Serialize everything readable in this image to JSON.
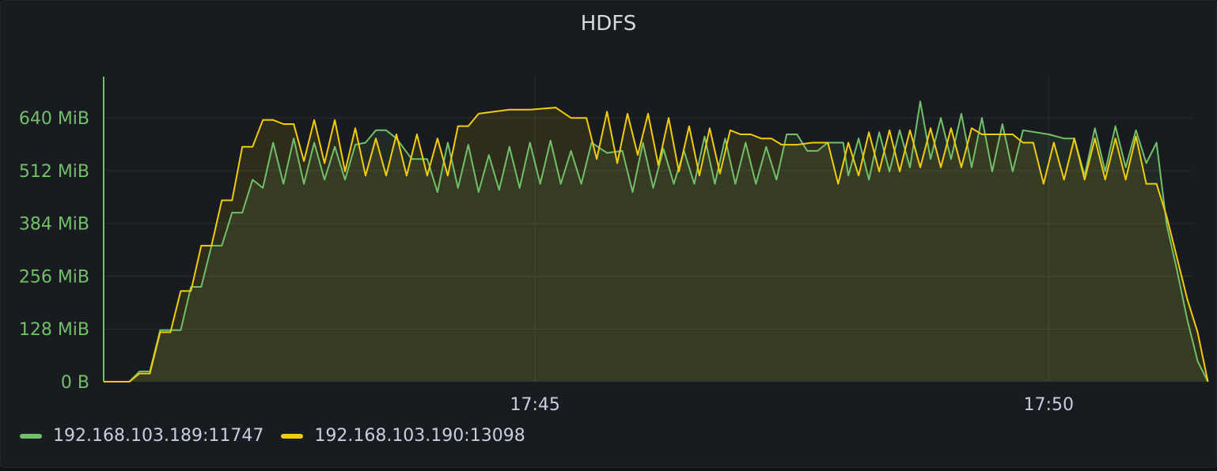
{
  "panel": {
    "title": "HDFS"
  },
  "colors": {
    "series_green": "#73bf69",
    "series_yellow": "#f2cc0c",
    "ytick": "#73bf69",
    "xtick": "#c7d0d9",
    "grid": "#2a2d33"
  },
  "chart_data": {
    "type": "line",
    "title": "HDFS",
    "xlabel": "",
    "ylabel": "",
    "x_ticks": [
      "17:45",
      "17:50"
    ],
    "y_ticks": [
      "0 B",
      "128 MiB",
      "256 MiB",
      "384 MiB",
      "512 MiB",
      "640 MiB"
    ],
    "ylim": [
      0,
      740
    ],
    "y_unit": "MiB",
    "x_domain_minutes": [
      -4.2,
      6.4
    ],
    "grid": true,
    "legend_position": "bottom-left",
    "series": [
      {
        "name": "192.168.103.189:11747",
        "color": "#73bf69",
        "points": [
          [
            -4.2,
            0
          ],
          [
            -3.95,
            0
          ],
          [
            -3.85,
            25
          ],
          [
            -3.75,
            25
          ],
          [
            -3.65,
            125
          ],
          [
            -3.45,
            125
          ],
          [
            -3.35,
            230
          ],
          [
            -3.25,
            230
          ],
          [
            -3.15,
            330
          ],
          [
            -3.05,
            330
          ],
          [
            -2.95,
            410
          ],
          [
            -2.85,
            410
          ],
          [
            -2.75,
            490
          ],
          [
            -2.65,
            470
          ],
          [
            -2.55,
            580
          ],
          [
            -2.45,
            480
          ],
          [
            -2.35,
            590
          ],
          [
            -2.25,
            480
          ],
          [
            -2.15,
            580
          ],
          [
            -2.05,
            490
          ],
          [
            -1.95,
            570
          ],
          [
            -1.85,
            490
          ],
          [
            -1.75,
            575
          ],
          [
            -1.65,
            580
          ],
          [
            -1.55,
            610
          ],
          [
            -1.45,
            610
          ],
          [
            -1.35,
            590
          ],
          [
            -1.2,
            540
          ],
          [
            -1.05,
            540
          ],
          [
            -0.95,
            460
          ],
          [
            -0.85,
            580
          ],
          [
            -0.75,
            470
          ],
          [
            -0.65,
            575
          ],
          [
            -0.55,
            460
          ],
          [
            -0.45,
            550
          ],
          [
            -0.35,
            465
          ],
          [
            -0.25,
            570
          ],
          [
            -0.15,
            470
          ],
          [
            -0.05,
            580
          ],
          [
            0.05,
            480
          ],
          [
            0.15,
            585
          ],
          [
            0.25,
            480
          ],
          [
            0.35,
            560
          ],
          [
            0.45,
            480
          ],
          [
            0.55,
            580
          ],
          [
            0.7,
            555
          ],
          [
            0.85,
            560
          ],
          [
            0.95,
            460
          ],
          [
            1.05,
            580
          ],
          [
            1.15,
            470
          ],
          [
            1.25,
            565
          ],
          [
            1.35,
            480
          ],
          [
            1.45,
            560
          ],
          [
            1.55,
            480
          ],
          [
            1.65,
            595
          ],
          [
            1.75,
            480
          ],
          [
            1.85,
            590
          ],
          [
            1.95,
            480
          ],
          [
            2.05,
            580
          ],
          [
            2.15,
            480
          ],
          [
            2.25,
            570
          ],
          [
            2.35,
            490
          ],
          [
            2.45,
            600
          ],
          [
            2.55,
            600
          ],
          [
            2.65,
            560
          ],
          [
            2.75,
            560
          ],
          [
            2.85,
            580
          ],
          [
            3.0,
            580
          ],
          [
            3.05,
            500
          ],
          [
            3.15,
            590
          ],
          [
            3.25,
            490
          ],
          [
            3.35,
            605
          ],
          [
            3.45,
            510
          ],
          [
            3.55,
            610
          ],
          [
            3.65,
            520
          ],
          [
            3.75,
            680
          ],
          [
            3.85,
            540
          ],
          [
            3.95,
            640
          ],
          [
            4.05,
            540
          ],
          [
            4.15,
            650
          ],
          [
            4.25,
            520
          ],
          [
            4.35,
            640
          ],
          [
            4.45,
            510
          ],
          [
            4.55,
            625
          ],
          [
            4.65,
            510
          ],
          [
            4.75,
            610
          ],
          [
            5.0,
            600
          ],
          [
            5.15,
            590
          ],
          [
            5.25,
            590
          ],
          [
            5.35,
            500
          ],
          [
            5.45,
            615
          ],
          [
            5.55,
            510
          ],
          [
            5.65,
            620
          ],
          [
            5.75,
            520
          ],
          [
            5.85,
            610
          ],
          [
            5.95,
            530
          ],
          [
            6.05,
            580
          ],
          [
            6.15,
            380
          ],
          [
            6.25,
            270
          ],
          [
            6.35,
            150
          ],
          [
            6.45,
            50
          ],
          [
            6.55,
            0
          ]
        ]
      },
      {
        "name": "192.168.103.190:13098",
        "color": "#f2cc0c",
        "points": [
          [
            -4.2,
            0
          ],
          [
            -3.95,
            0
          ],
          [
            -3.85,
            20
          ],
          [
            -3.75,
            20
          ],
          [
            -3.65,
            120
          ],
          [
            -3.55,
            120
          ],
          [
            -3.45,
            220
          ],
          [
            -3.35,
            220
          ],
          [
            -3.25,
            330
          ],
          [
            -3.15,
            330
          ],
          [
            -3.05,
            440
          ],
          [
            -2.95,
            440
          ],
          [
            -2.85,
            570
          ],
          [
            -2.75,
            570
          ],
          [
            -2.65,
            635
          ],
          [
            -2.55,
            635
          ],
          [
            -2.45,
            625
          ],
          [
            -2.35,
            625
          ],
          [
            -2.25,
            535
          ],
          [
            -2.15,
            635
          ],
          [
            -2.05,
            530
          ],
          [
            -1.95,
            635
          ],
          [
            -1.85,
            510
          ],
          [
            -1.75,
            615
          ],
          [
            -1.65,
            500
          ],
          [
            -1.55,
            590
          ],
          [
            -1.45,
            500
          ],
          [
            -1.35,
            600
          ],
          [
            -1.25,
            500
          ],
          [
            -1.15,
            600
          ],
          [
            -1.05,
            500
          ],
          [
            -0.95,
            590
          ],
          [
            -0.85,
            500
          ],
          [
            -0.75,
            620
          ],
          [
            -0.65,
            620
          ],
          [
            -0.55,
            650
          ],
          [
            -0.4,
            655
          ],
          [
            -0.25,
            660
          ],
          [
            -0.05,
            660
          ],
          [
            0.2,
            665
          ],
          [
            0.35,
            640
          ],
          [
            0.5,
            640
          ],
          [
            0.6,
            540
          ],
          [
            0.7,
            655
          ],
          [
            0.8,
            530
          ],
          [
            0.9,
            650
          ],
          [
            1.0,
            550
          ],
          [
            1.1,
            650
          ],
          [
            1.2,
            525
          ],
          [
            1.3,
            640
          ],
          [
            1.4,
            510
          ],
          [
            1.5,
            620
          ],
          [
            1.6,
            500
          ],
          [
            1.7,
            615
          ],
          [
            1.8,
            505
          ],
          [
            1.9,
            610
          ],
          [
            2.0,
            600
          ],
          [
            2.1,
            600
          ],
          [
            2.2,
            590
          ],
          [
            2.3,
            590
          ],
          [
            2.4,
            575
          ],
          [
            2.55,
            575
          ],
          [
            2.7,
            580
          ],
          [
            2.85,
            580
          ],
          [
            2.95,
            480
          ],
          [
            3.05,
            580
          ],
          [
            3.15,
            500
          ],
          [
            3.25,
            605
          ],
          [
            3.35,
            510
          ],
          [
            3.45,
            610
          ],
          [
            3.55,
            510
          ],
          [
            3.65,
            610
          ],
          [
            3.75,
            520
          ],
          [
            3.85,
            615
          ],
          [
            3.95,
            520
          ],
          [
            4.05,
            615
          ],
          [
            4.15,
            520
          ],
          [
            4.25,
            615
          ],
          [
            4.35,
            600
          ],
          [
            4.5,
            600
          ],
          [
            4.65,
            600
          ],
          [
            4.75,
            580
          ],
          [
            4.85,
            580
          ],
          [
            4.95,
            480
          ],
          [
            5.05,
            580
          ],
          [
            5.15,
            490
          ],
          [
            5.25,
            590
          ],
          [
            5.35,
            490
          ],
          [
            5.45,
            590
          ],
          [
            5.55,
            490
          ],
          [
            5.65,
            590
          ],
          [
            5.75,
            490
          ],
          [
            5.85,
            595
          ],
          [
            5.95,
            480
          ],
          [
            6.05,
            480
          ],
          [
            6.15,
            400
          ],
          [
            6.25,
            300
          ],
          [
            6.35,
            200
          ],
          [
            6.45,
            120
          ],
          [
            6.55,
            0
          ]
        ]
      }
    ]
  }
}
